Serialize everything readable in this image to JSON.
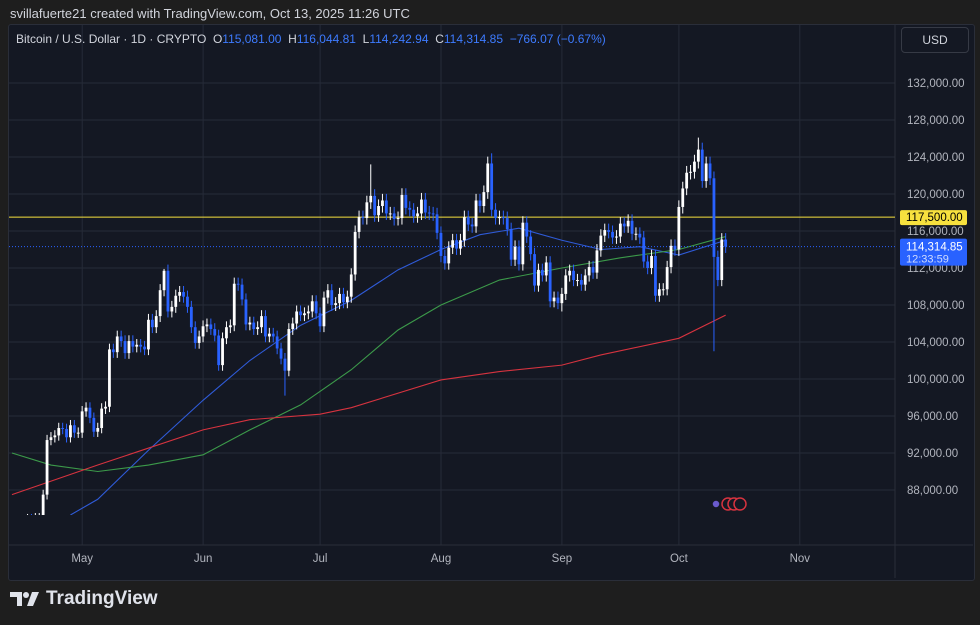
{
  "credit": "svillafuerte21 created with TradingView.com, Oct 13, 2025 11:26 UTC",
  "legend": {
    "symbol": "Bitcoin / U.S. Dollar · 1D · CRYPTO",
    "o_label": "O",
    "o": "115,081.00",
    "h_label": "H",
    "h": "116,044.81",
    "l_label": "L",
    "l": "114,242.94",
    "c_label": "C",
    "c": "114,314.85",
    "change": "−766.07 (−0.67%)"
  },
  "currency_button": "USD",
  "logo": "TradingView",
  "colors": {
    "up": "#ffffff",
    "down": "#2962ff",
    "ma_blue": "#2f5bd8",
    "ma_green": "#3c9a4a",
    "ma_red": "#d6333f",
    "level": "#f7e13e",
    "price_tag": "#2962ff"
  },
  "chart_data": {
    "type": "candlestick",
    "title": "Bitcoin / U.S. Dollar · 1D · CRYPTO",
    "start_date": "2025-04-13",
    "interval": "1D",
    "ylim": [
      82000,
      137700
    ],
    "y_ticks": [
      "88,000.00",
      "92,000.00",
      "96,000.00",
      "100,000.00",
      "104,000.00",
      "108,000.00",
      "112,000.00",
      "116,000.00",
      "120,000.00",
      "124,000.00",
      "128,000.00",
      "132,000.00"
    ],
    "y_tick_values": [
      88000,
      92000,
      96000,
      100000,
      104000,
      108000,
      112000,
      116000,
      120000,
      124000,
      128000,
      132000
    ],
    "x_ticks": [
      {
        "label": "May",
        "date": "2025-05-01"
      },
      {
        "label": "Jun",
        "date": "2025-06-01"
      },
      {
        "label": "Jul",
        "date": "2025-07-01"
      },
      {
        "label": "Aug",
        "date": "2025-08-01"
      },
      {
        "label": "Sep",
        "date": "2025-09-01"
      },
      {
        "label": "Oct",
        "date": "2025-10-01"
      },
      {
        "label": "Nov",
        "date": "2025-11-01"
      }
    ],
    "x_end_date": "2025-11-25",
    "first_open": 83600,
    "closes": [
      83700,
      84500,
      83600,
      84000,
      84900,
      84500,
      85000,
      85000,
      87500,
      93400,
      93700,
      93900,
      94700,
      94600,
      93700,
      95000,
      94200,
      94200,
      96500,
      96900,
      95800,
      94300,
      94700,
      96800,
      97000,
      103200,
      102900,
      104600,
      104100,
      102800,
      104100,
      103500,
      103700,
      103500,
      103200,
      106400,
      105600,
      106800,
      109600,
      111700,
      107300,
      107800,
      109000,
      109400,
      108900,
      107800,
      105600,
      103900,
      104600,
      105700,
      105900,
      105400,
      104700,
      101500,
      104400,
      105600,
      105800,
      110300,
      110200,
      108600,
      105900,
      106100,
      105400,
      105600,
      106800,
      104600,
      104900,
      104600,
      103300,
      102200,
      100900,
      105400,
      106000,
      107300,
      106900,
      107100,
      107300,
      108400,
      107100,
      105700,
      108800,
      109600,
      108000,
      108200,
      109200,
      108300,
      108900,
      111300,
      115900,
      117500,
      117400,
      119100,
      119800,
      117700,
      118700,
      119300,
      117900,
      117900,
      117300,
      117400,
      119900,
      118500,
      118300,
      117600,
      117900,
      119400,
      118000,
      117900,
      117800,
      115800,
      113300,
      112500,
      114200,
      115000,
      114100,
      115000,
      117500,
      116700,
      116500,
      119300,
      118700,
      120200,
      123300,
      118300,
      117400,
      117500,
      117400,
      116200,
      112900,
      114300,
      112400,
      116900,
      115400,
      113500,
      110100,
      111800,
      111200,
      112600,
      108400,
      108800,
      108200,
      109200,
      111200,
      111700,
      110700,
      110700,
      110200,
      111200,
      112100,
      111500,
      113900,
      115500,
      116100,
      115900,
      115300,
      115400,
      116800,
      116500,
      117100,
      115700,
      115700,
      115300,
      112700,
      112000,
      113300,
      109000,
      109700,
      109700,
      112100,
      114400,
      114000,
      118600,
      120600,
      122300,
      122400,
      123500,
      124800,
      121400,
      123300,
      121700,
      113200,
      110700,
      115081,
      114314.85
    ],
    "wick_extremes": [
      {
        "date": "2025-05-22",
        "high": 111900
      },
      {
        "date": "2025-06-22",
        "low": 98200
      },
      {
        "date": "2025-07-14",
        "high": 123200
      },
      {
        "date": "2025-08-14",
        "high": 124400
      },
      {
        "date": "2025-09-01",
        "low": 107300
      },
      {
        "date": "2025-10-06",
        "high": 126100
      },
      {
        "date": "2025-10-10",
        "low": 103000
      }
    ],
    "moving_averages": [
      {
        "color": "#2f5bd8",
        "points": [
          [
            "2025-04-28",
            85300
          ],
          [
            "2025-05-05",
            87000
          ],
          [
            "2025-05-18",
            92300
          ],
          [
            "2025-06-01",
            97700
          ],
          [
            "2025-06-13",
            102000
          ],
          [
            "2025-06-26",
            105800
          ],
          [
            "2025-07-09",
            108500
          ],
          [
            "2025-07-21",
            111800
          ],
          [
            "2025-08-01",
            114000
          ],
          [
            "2025-08-11",
            115600
          ],
          [
            "2025-08-21",
            116300
          ],
          [
            "2025-09-01",
            115000
          ],
          [
            "2025-09-11",
            114000
          ],
          [
            "2025-09-21",
            114300
          ],
          [
            "2025-10-01",
            113400
          ],
          [
            "2025-10-13",
            115000
          ]
        ]
      },
      {
        "color": "#3c9a4a",
        "points": [
          [
            "2025-04-13",
            92000
          ],
          [
            "2025-04-23",
            90700
          ],
          [
            "2025-05-05",
            90000
          ],
          [
            "2025-05-18",
            90700
          ],
          [
            "2025-06-01",
            91800
          ],
          [
            "2025-06-13",
            94500
          ],
          [
            "2025-06-26",
            97200
          ],
          [
            "2025-07-09",
            101000
          ],
          [
            "2025-07-21",
            105300
          ],
          [
            "2025-08-01",
            108000
          ],
          [
            "2025-08-16",
            110700
          ],
          [
            "2025-09-01",
            112000
          ],
          [
            "2025-09-16",
            113100
          ],
          [
            "2025-10-01",
            114000
          ],
          [
            "2025-10-13",
            115400
          ]
        ]
      },
      {
        "color": "#d6333f",
        "points": [
          [
            "2025-04-13",
            87500
          ],
          [
            "2025-05-05",
            90700
          ],
          [
            "2025-06-01",
            94500
          ],
          [
            "2025-06-13",
            95600
          ],
          [
            "2025-07-01",
            96200
          ],
          [
            "2025-07-09",
            96900
          ],
          [
            "2025-08-01",
            99900
          ],
          [
            "2025-08-16",
            100800
          ],
          [
            "2025-09-01",
            101500
          ],
          [
            "2025-09-11",
            102600
          ],
          [
            "2025-10-01",
            104400
          ],
          [
            "2025-10-13",
            106900
          ]
        ]
      }
    ],
    "horizontal_line": {
      "value": 117500,
      "label": "117,500.00"
    },
    "last_price": {
      "value": 114314.85,
      "label": "114,314.85",
      "countdown": "12:33:59"
    }
  }
}
